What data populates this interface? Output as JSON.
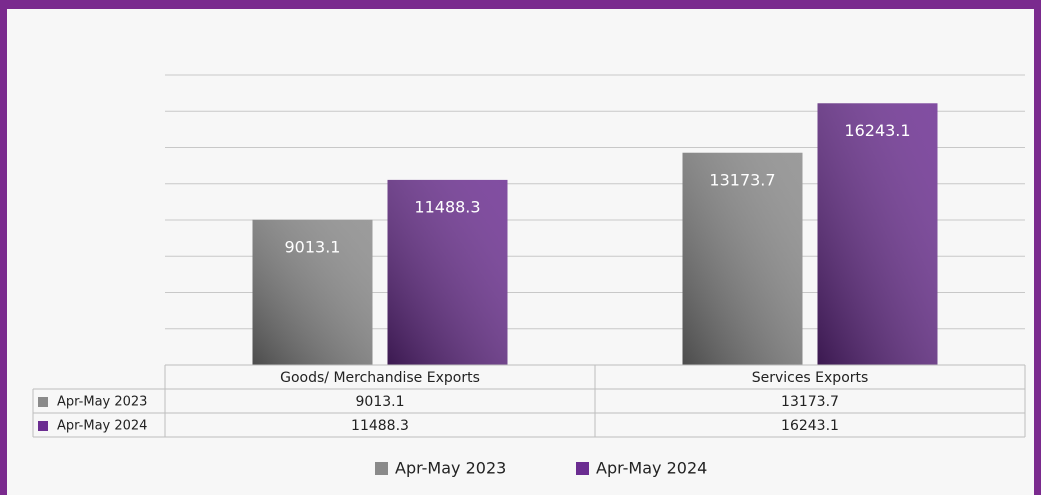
{
  "chart_data": {
    "type": "bar",
    "categories": [
      "Goods/ Merchandise Exports",
      "Services Exports"
    ],
    "series": [
      {
        "name": "Apr-May 2023",
        "color": "#8a8a8a",
        "values": [
          9013.1,
          13173.7
        ]
      },
      {
        "name": "Apr-May 2024",
        "color": "#6b2d91",
        "values": [
          11488.3,
          16243.1
        ]
      }
    ],
    "ylim": [
      0,
      18000
    ],
    "yticks": [
      0,
      2250,
      4500,
      6750,
      9000,
      11250,
      13500,
      15750,
      18000
    ],
    "grid": true,
    "data_table": true,
    "legend": "bottom"
  }
}
